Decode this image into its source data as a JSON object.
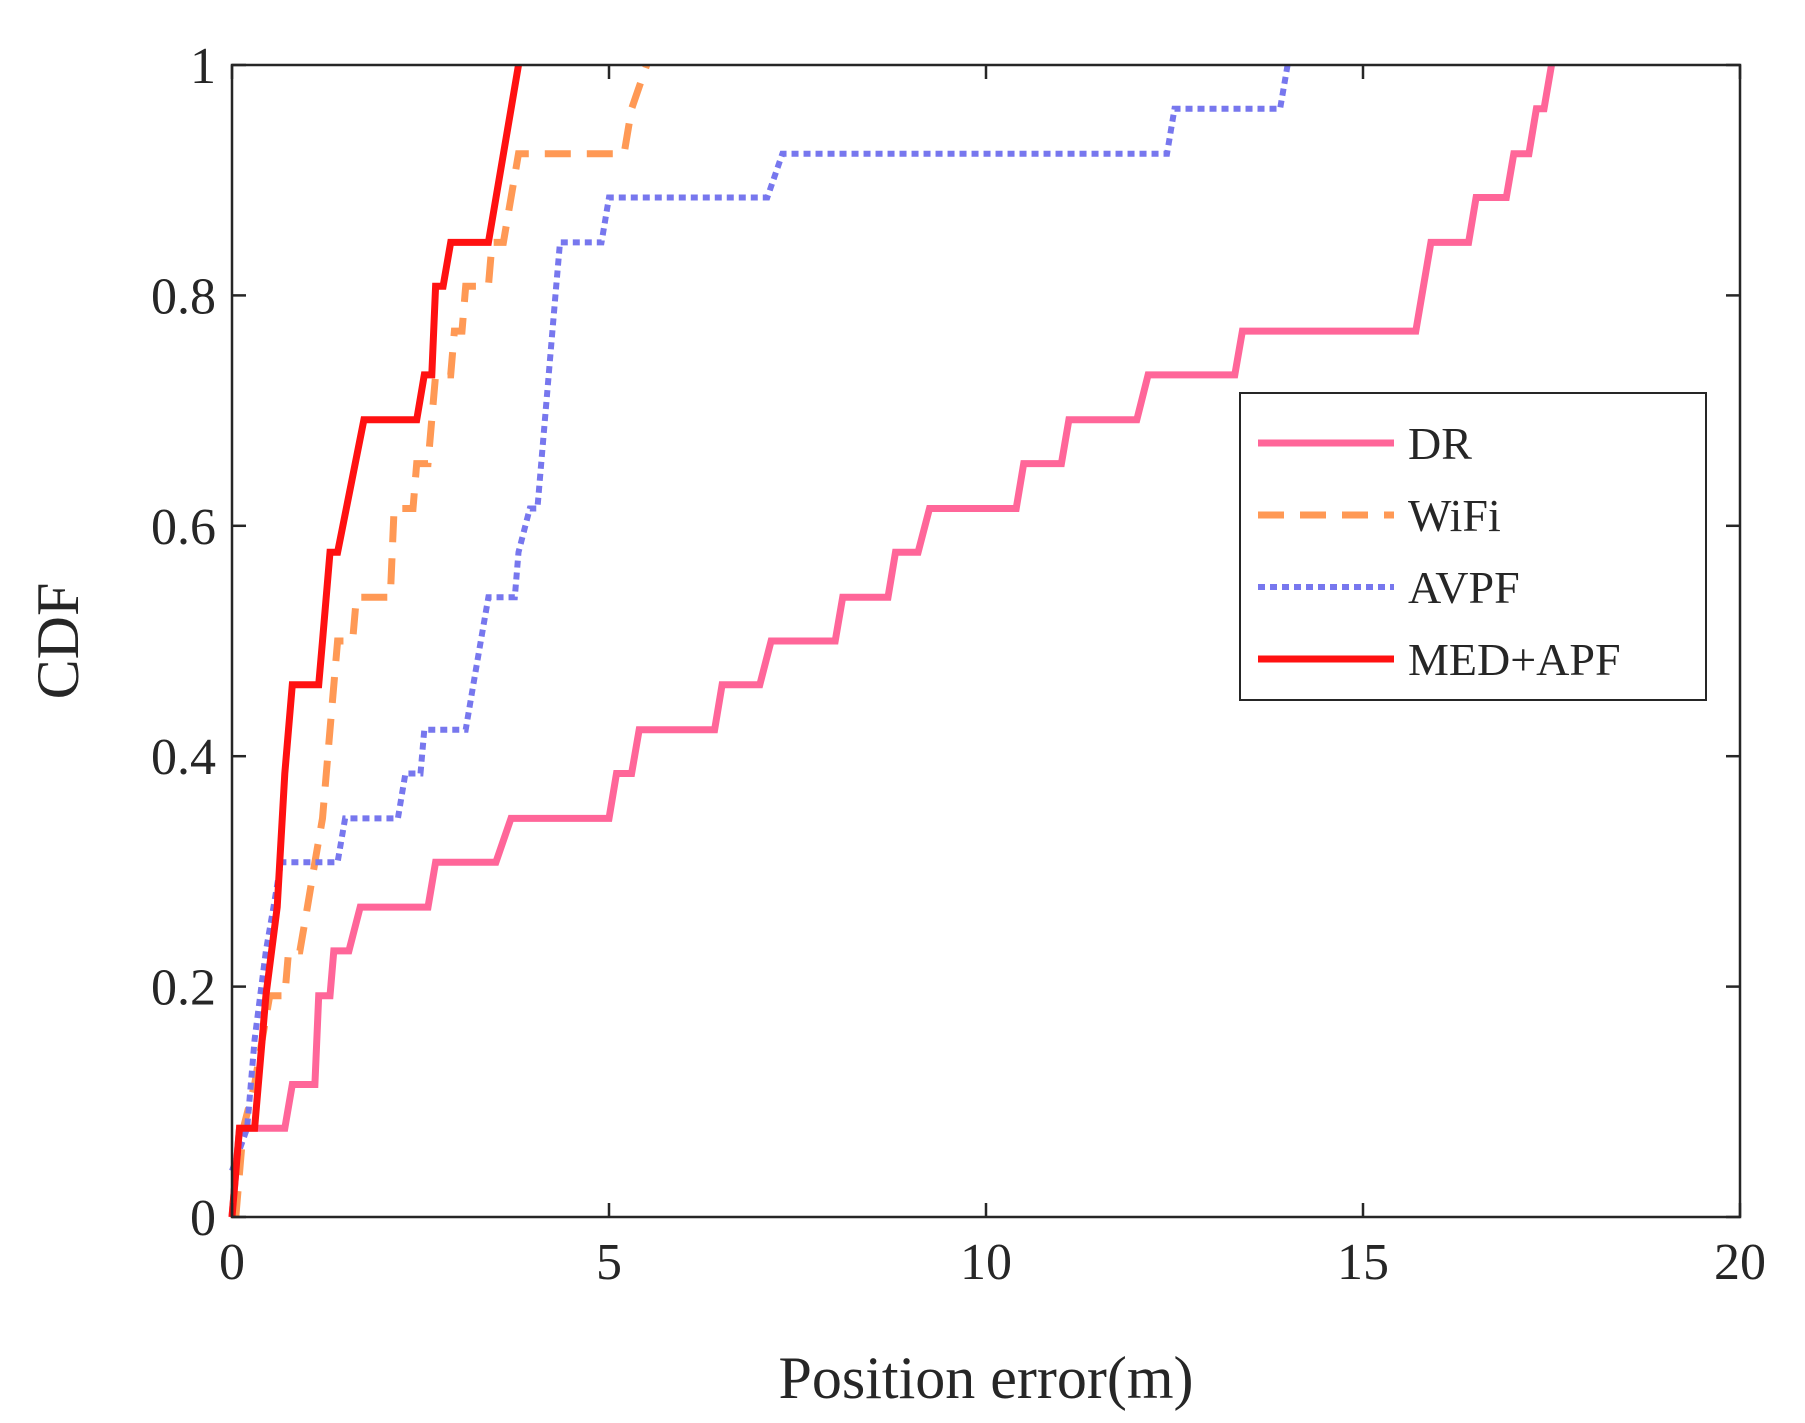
{
  "chart_data": {
    "type": "line",
    "title": "",
    "xlabel": "Position error(m)",
    "ylabel": "CDF",
    "xlim": [
      0,
      20
    ],
    "ylim": [
      0,
      1
    ],
    "xticks": [
      "0",
      "5",
      "10",
      "15",
      "20"
    ],
    "yticks": [
      "0",
      "0.2",
      "0.4",
      "0.6",
      "0.8",
      "1"
    ],
    "grid": false,
    "legend_position": "right",
    "series": [
      {
        "name": "DR",
        "color": "#ff6699",
        "style": "solid",
        "points": [
          [
            0,
            0
          ],
          [
            0.1,
            0.077
          ],
          [
            0.7,
            0.077
          ],
          [
            0.8,
            0.115
          ],
          [
            1.1,
            0.115
          ],
          [
            1.15,
            0.192
          ],
          [
            1.3,
            0.192
          ],
          [
            1.35,
            0.231
          ],
          [
            1.55,
            0.231
          ],
          [
            1.7,
            0.269
          ],
          [
            2.6,
            0.269
          ],
          [
            2.7,
            0.308
          ],
          [
            3.5,
            0.308
          ],
          [
            3.7,
            0.346
          ],
          [
            5.0,
            0.346
          ],
          [
            5.1,
            0.385
          ],
          [
            5.3,
            0.385
          ],
          [
            5.4,
            0.423
          ],
          [
            6.4,
            0.423
          ],
          [
            6.5,
            0.462
          ],
          [
            7.0,
            0.462
          ],
          [
            7.15,
            0.5
          ],
          [
            8.0,
            0.5
          ],
          [
            8.1,
            0.538
          ],
          [
            8.7,
            0.538
          ],
          [
            8.8,
            0.577
          ],
          [
            9.1,
            0.577
          ],
          [
            9.25,
            0.615
          ],
          [
            10.4,
            0.615
          ],
          [
            10.5,
            0.654
          ],
          [
            11.0,
            0.654
          ],
          [
            11.1,
            0.692
          ],
          [
            12.0,
            0.692
          ],
          [
            12.15,
            0.731
          ],
          [
            13.3,
            0.731
          ],
          [
            13.4,
            0.769
          ],
          [
            15.7,
            0.769
          ],
          [
            15.9,
            0.846
          ],
          [
            16.4,
            0.846
          ],
          [
            16.5,
            0.885
          ],
          [
            16.9,
            0.885
          ],
          [
            17.0,
            0.923
          ],
          [
            17.2,
            0.923
          ],
          [
            17.3,
            0.962
          ],
          [
            17.4,
            0.962
          ],
          [
            17.5,
            1.0
          ]
        ]
      },
      {
        "name": "WiFi",
        "color": "#ff9955",
        "style": "dashed",
        "points": [
          [
            0.05,
            0
          ],
          [
            0.1,
            0.038
          ],
          [
            0.15,
            0.077
          ],
          [
            0.3,
            0.115
          ],
          [
            0.4,
            0.154
          ],
          [
            0.5,
            0.192
          ],
          [
            0.7,
            0.192
          ],
          [
            0.75,
            0.231
          ],
          [
            0.9,
            0.231
          ],
          [
            1.0,
            0.269
          ],
          [
            1.1,
            0.308
          ],
          [
            1.2,
            0.346
          ],
          [
            1.3,
            0.423
          ],
          [
            1.4,
            0.5
          ],
          [
            1.6,
            0.5
          ],
          [
            1.65,
            0.538
          ],
          [
            2.1,
            0.538
          ],
          [
            2.15,
            0.615
          ],
          [
            2.4,
            0.615
          ],
          [
            2.45,
            0.654
          ],
          [
            2.6,
            0.654
          ],
          [
            2.7,
            0.731
          ],
          [
            2.9,
            0.731
          ],
          [
            2.95,
            0.769
          ],
          [
            3.05,
            0.769
          ],
          [
            3.1,
            0.808
          ],
          [
            3.4,
            0.808
          ],
          [
            3.45,
            0.846
          ],
          [
            3.6,
            0.846
          ],
          [
            3.8,
            0.923
          ],
          [
            5.2,
            0.923
          ],
          [
            5.3,
            0.962
          ],
          [
            5.5,
            1.0
          ]
        ]
      },
      {
        "name": "AVPF",
        "color": "#7777ee",
        "style": "dotted",
        "points": [
          [
            0,
            0.04
          ],
          [
            0.2,
            0.077
          ],
          [
            0.3,
            0.154
          ],
          [
            0.45,
            0.231
          ],
          [
            0.55,
            0.269
          ],
          [
            0.65,
            0.308
          ],
          [
            1.4,
            0.308
          ],
          [
            1.5,
            0.346
          ],
          [
            2.2,
            0.346
          ],
          [
            2.3,
            0.385
          ],
          [
            2.5,
            0.385
          ],
          [
            2.55,
            0.423
          ],
          [
            3.1,
            0.423
          ],
          [
            3.2,
            0.462
          ],
          [
            3.3,
            0.5
          ],
          [
            3.4,
            0.538
          ],
          [
            3.75,
            0.538
          ],
          [
            3.8,
            0.577
          ],
          [
            3.95,
            0.615
          ],
          [
            4.05,
            0.615
          ],
          [
            4.2,
            0.731
          ],
          [
            4.3,
            0.808
          ],
          [
            4.35,
            0.846
          ],
          [
            4.9,
            0.846
          ],
          [
            5.0,
            0.885
          ],
          [
            7.1,
            0.885
          ],
          [
            7.3,
            0.923
          ],
          [
            12.4,
            0.923
          ],
          [
            12.5,
            0.962
          ],
          [
            13.9,
            0.962
          ],
          [
            14.0,
            1.0
          ]
        ]
      },
      {
        "name": "MED+APF",
        "color": "#ff1111",
        "style": "solid",
        "points": [
          [
            0,
            0
          ],
          [
            0.1,
            0.077
          ],
          [
            0.3,
            0.077
          ],
          [
            0.45,
            0.192
          ],
          [
            0.6,
            0.269
          ],
          [
            0.7,
            0.385
          ],
          [
            0.8,
            0.462
          ],
          [
            1.15,
            0.462
          ],
          [
            1.2,
            0.5
          ],
          [
            1.3,
            0.577
          ],
          [
            1.4,
            0.577
          ],
          [
            1.75,
            0.692
          ],
          [
            2.45,
            0.692
          ],
          [
            2.55,
            0.731
          ],
          [
            2.65,
            0.731
          ],
          [
            2.7,
            0.808
          ],
          [
            2.8,
            0.808
          ],
          [
            2.9,
            0.846
          ],
          [
            3.4,
            0.846
          ],
          [
            3.8,
            1.0
          ]
        ]
      }
    ]
  }
}
